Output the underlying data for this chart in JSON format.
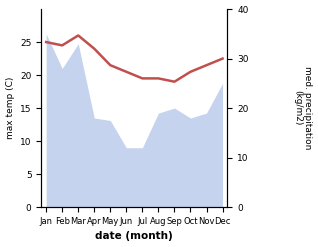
{
  "months": [
    "Jan",
    "Feb",
    "Mar",
    "Apr",
    "May",
    "Jun",
    "Jul",
    "Aug",
    "Sep",
    "Oct",
    "Nov",
    "Dec"
  ],
  "temp": [
    25.0,
    24.5,
    26.0,
    24.0,
    21.5,
    20.5,
    19.5,
    19.5,
    19.0,
    20.5,
    21.5,
    22.5
  ],
  "precip": [
    35.0,
    28.0,
    33.0,
    18.0,
    17.5,
    12.0,
    12.0,
    19.0,
    20.0,
    18.0,
    19.0,
    25.0
  ],
  "temp_color": "#c0504d",
  "precip_color": "#c5d3ee",
  "ylabel_left": "max temp (C)",
  "ylabel_right": "med. precipitation\n(kg/m2)",
  "xlabel": "date (month)",
  "ylim_left": [
    0,
    30
  ],
  "ylim_right": [
    0,
    40
  ],
  "yticks_left": [
    0,
    5,
    10,
    15,
    20,
    25
  ],
  "yticks_right": [
    0,
    10,
    20,
    30,
    40
  ]
}
